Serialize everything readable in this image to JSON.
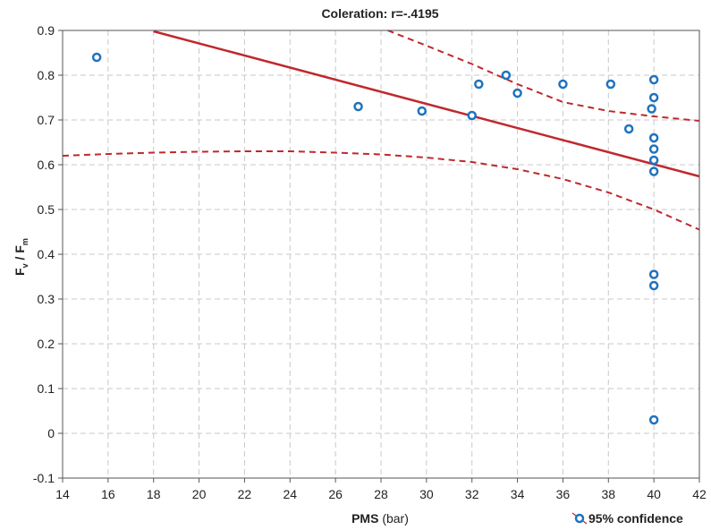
{
  "chart_data": {
    "type": "scatter",
    "title": "Coleration: r=-.4195",
    "xlabel": {
      "main": "PMS",
      "unit": " (bar)"
    },
    "ylabel": {
      "f1": "F",
      "sub1": "v",
      "sep": " / ",
      "f2": "F",
      "sub2": "m"
    },
    "xlim": [
      14,
      42
    ],
    "ylim": [
      -0.1,
      0.9
    ],
    "x_ticks": [
      14,
      16,
      18,
      20,
      22,
      24,
      26,
      28,
      30,
      32,
      34,
      36,
      38,
      40,
      42
    ],
    "y_ticks": [
      -0.1,
      0,
      0.1,
      0.2,
      0.3,
      0.4,
      0.5,
      0.6,
      0.7,
      0.8,
      0.9
    ],
    "y_tick_labels": [
      "-0.1",
      "0",
      "0.1",
      "0.2",
      "0.3",
      "0.4",
      "0.5",
      "0.6",
      "0.7",
      "0.8",
      "0.9"
    ],
    "grid": true,
    "legend": {
      "position": "bottom-right",
      "label": "95% confidence"
    },
    "points": [
      {
        "x": 15.5,
        "y": 0.84
      },
      {
        "x": 27.0,
        "y": 0.73
      },
      {
        "x": 29.8,
        "y": 0.72
      },
      {
        "x": 32.0,
        "y": 0.71
      },
      {
        "x": 32.3,
        "y": 0.78
      },
      {
        "x": 33.5,
        "y": 0.8
      },
      {
        "x": 34.0,
        "y": 0.76
      },
      {
        "x": 36.0,
        "y": 0.78
      },
      {
        "x": 38.1,
        "y": 0.78
      },
      {
        "x": 38.9,
        "y": 0.68
      },
      {
        "x": 39.9,
        "y": 0.725
      },
      {
        "x": 40.0,
        "y": 0.79
      },
      {
        "x": 40.0,
        "y": 0.75
      },
      {
        "x": 40.0,
        "y": 0.66
      },
      {
        "x": 40.0,
        "y": 0.635
      },
      {
        "x": 40.0,
        "y": 0.61
      },
      {
        "x": 40.0,
        "y": 0.585
      },
      {
        "x": 40.0,
        "y": 0.355
      },
      {
        "x": 40.0,
        "y": 0.33
      },
      {
        "x": 40.0,
        "y": 0.03
      }
    ],
    "regression": {
      "x": [
        18,
        42
      ],
      "y": [
        0.898,
        0.574
      ]
    },
    "ci_upper": {
      "x": [
        28.3,
        30,
        32,
        34,
        36,
        38,
        40,
        42
      ],
      "y": [
        0.9,
        0.866,
        0.825,
        0.78,
        0.74,
        0.72,
        0.708,
        0.698
      ]
    },
    "ci_lower": {
      "x": [
        14,
        16,
        18,
        20,
        22,
        24,
        26,
        28,
        30,
        32,
        34,
        36,
        38,
        40,
        42
      ],
      "y": [
        0.62,
        0.624,
        0.627,
        0.629,
        0.63,
        0.63,
        0.627,
        0.623,
        0.616,
        0.606,
        0.59,
        0.568,
        0.538,
        0.5,
        0.455
      ]
    },
    "colors": {
      "points": "#1e73be",
      "fit": "#c0282d",
      "grid": "#c8c8c8",
      "axis": "#555555"
    }
  }
}
